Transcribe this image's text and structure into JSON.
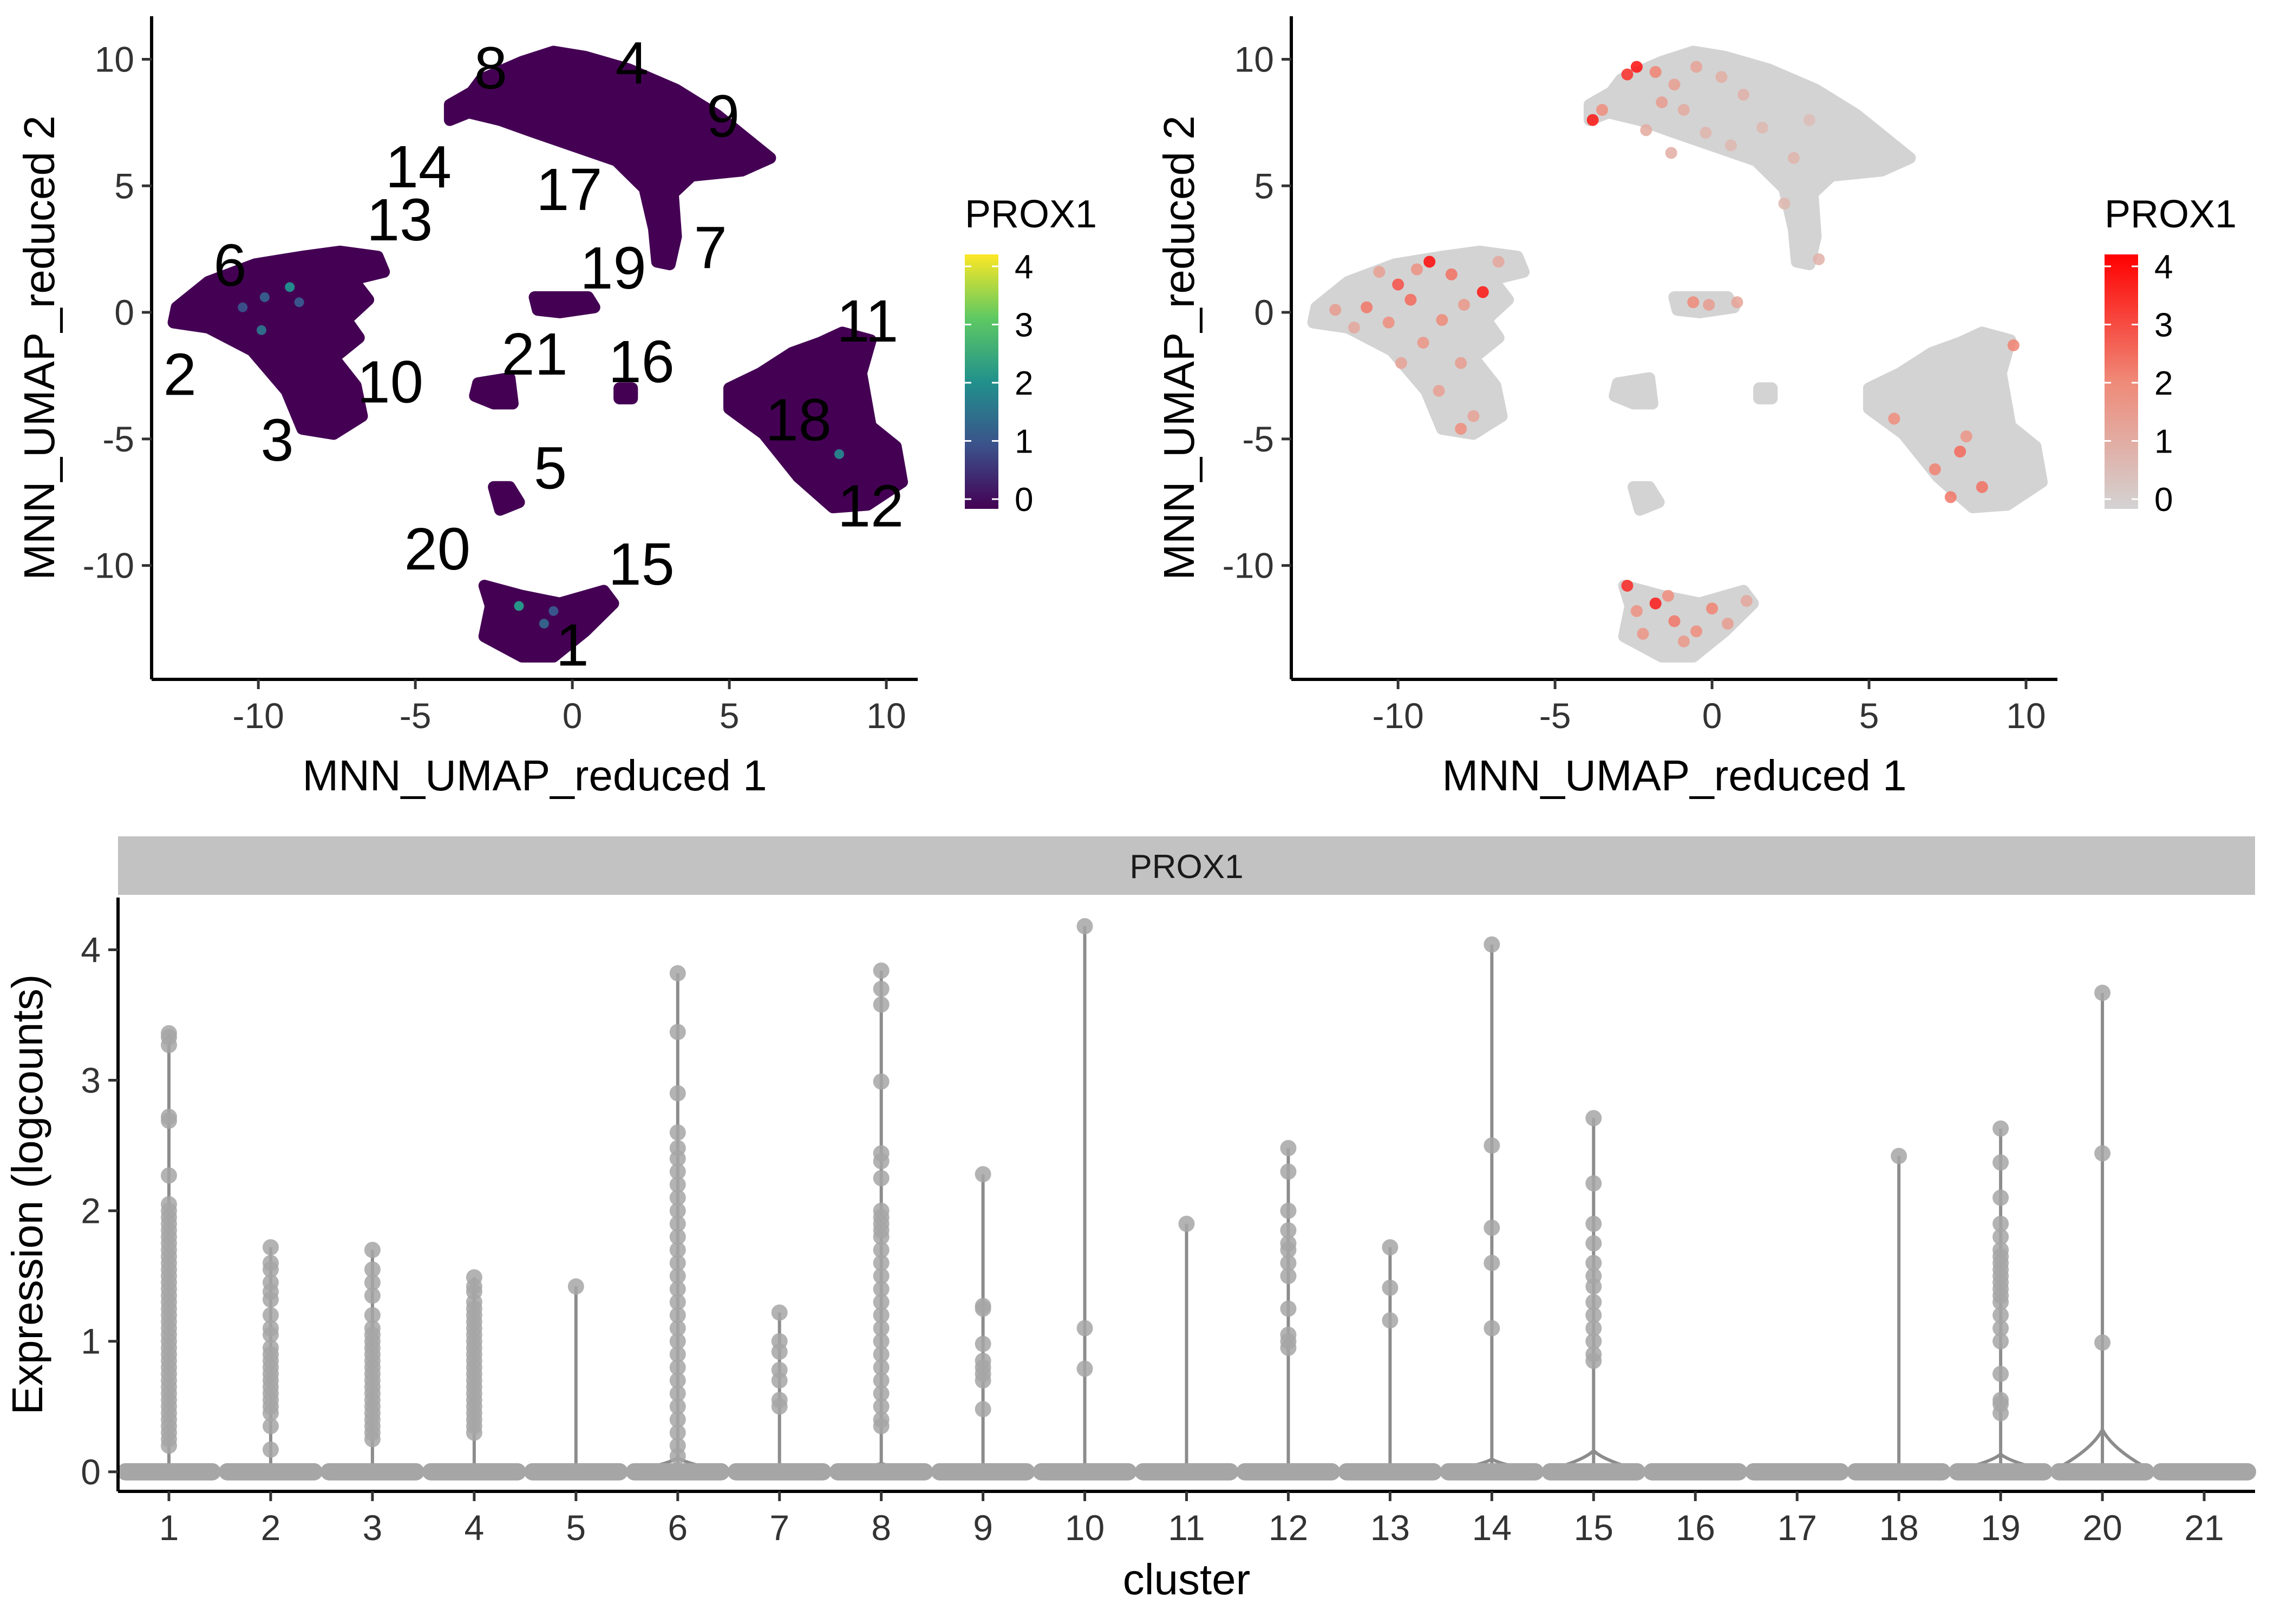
{
  "chart_data": [
    {
      "type": "scatter",
      "xlabel": "MNN_UMAP_reduced 1",
      "ylabel": "MNN_UMAP_reduced 2",
      "xlim": [
        -13.4,
        11.0
      ],
      "ylim": [
        -14.5,
        11.7
      ],
      "xticks": [
        -10,
        -5,
        0,
        5,
        10
      ],
      "yticks": [
        -10,
        -5,
        0,
        5,
        10
      ],
      "xtick_labels": [
        "-10",
        "-5",
        "0",
        "5",
        "10"
      ],
      "ytick_labels": [
        "-10",
        "-5",
        "0",
        "5",
        "10"
      ],
      "grid": false,
      "point_color": "#440154",
      "legend": {
        "title": "PROX1",
        "position": "right",
        "colormap": "viridis",
        "colors": [
          "#440154",
          "#3b528b",
          "#21918c",
          "#5ec962",
          "#fde725"
        ],
        "range": [
          0,
          4
        ],
        "tick_values": [
          0,
          1,
          2,
          3,
          4
        ],
        "tick_labels": [
          "0",
          "1",
          "2",
          "3",
          "4"
        ]
      },
      "cluster_labels": [
        {
          "text": "8",
          "x": -2.6,
          "y": 9.7
        },
        {
          "text": "4",
          "x": 1.9,
          "y": 9.9
        },
        {
          "text": "9",
          "x": 4.8,
          "y": 7.8
        },
        {
          "text": "14",
          "x": -4.9,
          "y": 5.8
        },
        {
          "text": "17",
          "x": -0.1,
          "y": 4.9
        },
        {
          "text": "13",
          "x": -5.5,
          "y": 3.7
        },
        {
          "text": "7",
          "x": 4.4,
          "y": 2.6
        },
        {
          "text": "6",
          "x": -10.9,
          "y": 1.9
        },
        {
          "text": "19",
          "x": 1.3,
          "y": 1.8
        },
        {
          "text": "11",
          "x": 9.4,
          "y": -0.3
        },
        {
          "text": "21",
          "x": -1.2,
          "y": -1.6
        },
        {
          "text": "16",
          "x": 2.2,
          "y": -1.9
        },
        {
          "text": "2",
          "x": -12.5,
          "y": -2.4
        },
        {
          "text": "10",
          "x": -5.8,
          "y": -2.7
        },
        {
          "text": "18",
          "x": 7.2,
          "y": -4.2
        },
        {
          "text": "3",
          "x": -9.4,
          "y": -5.0
        },
        {
          "text": "5",
          "x": -0.7,
          "y": -6.1
        },
        {
          "text": "12",
          "x": 9.5,
          "y": -7.6
        },
        {
          "text": "20",
          "x": -4.3,
          "y": -9.3
        },
        {
          "text": "15",
          "x": 2.2,
          "y": -9.9
        },
        {
          "text": "1",
          "x": 0.0,
          "y": -13.1
        }
      ],
      "highlight_points": [
        {
          "x": -9.8,
          "y": 0.6,
          "v": 1.2
        },
        {
          "x": -10.5,
          "y": 0.2,
          "v": 1.0
        },
        {
          "x": -9.0,
          "y": 1.0,
          "v": 2.0
        },
        {
          "x": -9.9,
          "y": -0.7,
          "v": 1.5
        },
        {
          "x": -8.7,
          "y": 0.4,
          "v": 1.1
        },
        {
          "x": -1.7,
          "y": -11.6,
          "v": 2.2
        },
        {
          "x": -0.9,
          "y": -12.3,
          "v": 1.3
        },
        {
          "x": 8.5,
          "y": -5.6,
          "v": 1.8
        },
        {
          "x": -0.6,
          "y": -11.8,
          "v": 1.1
        }
      ]
    },
    {
      "type": "scatter",
      "xlabel": "MNN_UMAP_reduced 1",
      "ylabel": "MNN_UMAP_reduced 2",
      "xlim": [
        -13.4,
        11.0
      ],
      "ylim": [
        -14.5,
        11.7
      ],
      "xticks": [
        -10,
        -5,
        0,
        5,
        10
      ],
      "yticks": [
        -10,
        -5,
        0,
        5,
        10
      ],
      "xtick_labels": [
        "-10",
        "-5",
        "0",
        "5",
        "10"
      ],
      "ytick_labels": [
        "-10",
        "-5",
        "0",
        "5",
        "10"
      ],
      "grid": false,
      "point_color": "#d3d3d3",
      "legend": {
        "title": "PROX1",
        "position": "right",
        "colors": [
          "#d3d3d3",
          "#ef8a78",
          "#ff0000"
        ],
        "range": [
          0,
          4
        ],
        "tick_values": [
          0,
          1,
          2,
          3,
          4
        ],
        "tick_labels": [
          "0",
          "1",
          "2",
          "3",
          "4"
        ]
      },
      "highlight_points": [
        {
          "x": -2.4,
          "y": 9.7,
          "v": 4.0
        },
        {
          "x": -2.7,
          "y": 9.4,
          "v": 3.5
        },
        {
          "x": -3.8,
          "y": 7.6,
          "v": 3.9
        },
        {
          "x": -3.5,
          "y": 8.0,
          "v": 2.0
        },
        {
          "x": -1.8,
          "y": 9.5,
          "v": 2.2
        },
        {
          "x": -1.2,
          "y": 9.0,
          "v": 1.5
        },
        {
          "x": -0.5,
          "y": 9.7,
          "v": 1.4
        },
        {
          "x": -1.6,
          "y": 8.3,
          "v": 1.6
        },
        {
          "x": -0.9,
          "y": 8.0,
          "v": 1.2
        },
        {
          "x": 0.3,
          "y": 9.3,
          "v": 1.1
        },
        {
          "x": 1.0,
          "y": 8.6,
          "v": 1.0
        },
        {
          "x": -2.1,
          "y": 7.2,
          "v": 1.2
        },
        {
          "x": -0.2,
          "y": 7.1,
          "v": 0.9
        },
        {
          "x": 1.6,
          "y": 7.3,
          "v": 0.8
        },
        {
          "x": 2.6,
          "y": 6.1,
          "v": 0.9
        },
        {
          "x": 3.1,
          "y": 7.6,
          "v": 0.7
        },
        {
          "x": 2.3,
          "y": 4.3,
          "v": 0.8
        },
        {
          "x": 3.4,
          "y": 2.1,
          "v": 1.0
        },
        {
          "x": 0.6,
          "y": 6.6,
          "v": 0.8
        },
        {
          "x": -1.3,
          "y": 6.3,
          "v": 1.1
        },
        {
          "x": -9.0,
          "y": 2.0,
          "v": 4.1
        },
        {
          "x": -7.3,
          "y": 0.8,
          "v": 3.9
        },
        {
          "x": -10.0,
          "y": 1.1,
          "v": 3.0
        },
        {
          "x": -8.3,
          "y": 1.5,
          "v": 2.5
        },
        {
          "x": -11.0,
          "y": 0.2,
          "v": 2.4
        },
        {
          "x": -9.6,
          "y": 0.5,
          "v": 2.6
        },
        {
          "x": -8.6,
          "y": -0.3,
          "v": 2.1
        },
        {
          "x": -10.3,
          "y": -0.4,
          "v": 2.0
        },
        {
          "x": -9.2,
          "y": -1.2,
          "v": 1.8
        },
        {
          "x": -8.0,
          "y": -2.0,
          "v": 1.6
        },
        {
          "x": -8.7,
          "y": -3.1,
          "v": 1.5
        },
        {
          "x": -7.6,
          "y": -4.1,
          "v": 1.4
        },
        {
          "x": -8.0,
          "y": -4.6,
          "v": 2.0
        },
        {
          "x": -6.8,
          "y": 2.0,
          "v": 1.3
        },
        {
          "x": -12.0,
          "y": 0.1,
          "v": 1.6
        },
        {
          "x": -11.4,
          "y": -0.6,
          "v": 1.3
        },
        {
          "x": -10.6,
          "y": 1.6,
          "v": 1.5
        },
        {
          "x": -9.4,
          "y": 1.7,
          "v": 1.9
        },
        {
          "x": -7.9,
          "y": 0.3,
          "v": 1.7
        },
        {
          "x": -9.9,
          "y": -2.0,
          "v": 1.4
        },
        {
          "x": -0.6,
          "y": 0.4,
          "v": 2.1
        },
        {
          "x": -0.1,
          "y": 0.3,
          "v": 1.6
        },
        {
          "x": 0.8,
          "y": 0.4,
          "v": 1.4
        },
        {
          "x": -2.7,
          "y": -10.8,
          "v": 3.6
        },
        {
          "x": -1.8,
          "y": -11.5,
          "v": 3.8
        },
        {
          "x": -1.2,
          "y": -12.2,
          "v": 2.4
        },
        {
          "x": -0.5,
          "y": -12.6,
          "v": 2.0
        },
        {
          "x": 0.0,
          "y": -11.7,
          "v": 2.2
        },
        {
          "x": -2.2,
          "y": -12.7,
          "v": 1.8
        },
        {
          "x": -0.9,
          "y": -13.0,
          "v": 1.7
        },
        {
          "x": 0.5,
          "y": -12.3,
          "v": 1.6
        },
        {
          "x": -1.4,
          "y": -11.2,
          "v": 2.0
        },
        {
          "x": -2.4,
          "y": -11.8,
          "v": 1.9
        },
        {
          "x": 1.1,
          "y": -11.4,
          "v": 1.3
        },
        {
          "x": 9.6,
          "y": -1.3,
          "v": 2.2
        },
        {
          "x": 7.9,
          "y": -5.5,
          "v": 2.6
        },
        {
          "x": 7.1,
          "y": -6.2,
          "v": 2.2
        },
        {
          "x": 8.6,
          "y": -6.9,
          "v": 2.5
        },
        {
          "x": 7.6,
          "y": -7.3,
          "v": 2.4
        },
        {
          "x": 5.8,
          "y": -4.2,
          "v": 2.0
        },
        {
          "x": 8.1,
          "y": -4.9,
          "v": 1.8
        }
      ]
    },
    {
      "type": "violin",
      "strip_label": "PROX1",
      "xlabel": "cluster",
      "ylabel": "Expression (logcounts)",
      "categories": [
        "1",
        "2",
        "3",
        "4",
        "5",
        "6",
        "7",
        "8",
        "9",
        "10",
        "11",
        "12",
        "13",
        "14",
        "15",
        "16",
        "17",
        "18",
        "19",
        "20",
        "21"
      ],
      "ylim": [
        -0.15,
        4.4
      ],
      "yticks": [
        0,
        1,
        2,
        3,
        4
      ],
      "ytick_labels": [
        "0",
        "1",
        "2",
        "3",
        "4"
      ],
      "grid": false,
      "color": "#a6a6a6",
      "max_values": [
        3.36,
        1.72,
        1.7,
        1.49,
        1.42,
        3.82,
        1.22,
        3.84,
        2.28,
        4.18,
        1.9,
        2.48,
        1.72,
        4.04,
        2.71,
        0,
        0,
        2.42,
        2.63,
        3.67,
        0
      ],
      "nonzero_values": [
        [
          3.36,
          3.33,
          3.27,
          2.72,
          2.69,
          2.27,
          2.05,
          2.0,
          1.95,
          1.9,
          1.85,
          1.8,
          1.75,
          1.7,
          1.65,
          1.6,
          1.55,
          1.5,
          1.45,
          1.4,
          1.35,
          1.3,
          1.25,
          1.2,
          1.15,
          1.1,
          1.05,
          1.0,
          0.95,
          0.9,
          0.85,
          0.8,
          0.75,
          0.7,
          0.65,
          0.6,
          0.55,
          0.5,
          0.45,
          0.4,
          0.35,
          0.3,
          0.25,
          0.2
        ],
        [
          1.72,
          1.6,
          1.55,
          1.45,
          1.38,
          1.32,
          1.2,
          1.1,
          1.05,
          0.95,
          0.9,
          0.85,
          0.8,
          0.75,
          0.7,
          0.65,
          0.6,
          0.55,
          0.5,
          0.45,
          0.35,
          0.17
        ],
        [
          1.7,
          1.55,
          1.45,
          1.35,
          1.2,
          1.1,
          1.05,
          1.0,
          0.95,
          0.9,
          0.85,
          0.8,
          0.75,
          0.7,
          0.65,
          0.6,
          0.55,
          0.5,
          0.45,
          0.4,
          0.35,
          0.3,
          0.25
        ],
        [
          1.49,
          1.42,
          1.38,
          1.3,
          1.25,
          1.2,
          1.15,
          1.1,
          1.05,
          1.0,
          0.95,
          0.9,
          0.85,
          0.8,
          0.75,
          0.7,
          0.65,
          0.6,
          0.55,
          0.5,
          0.45,
          0.4,
          0.35,
          0.3
        ],
        [
          1.42
        ],
        [
          3.82,
          3.37,
          2.9,
          2.6,
          2.48,
          2.4,
          2.3,
          2.2,
          2.1,
          2.0,
          1.9,
          1.8,
          1.7,
          1.6,
          1.5,
          1.4,
          1.3,
          1.2,
          1.1,
          1.0,
          0.9,
          0.8,
          0.7,
          0.6,
          0.5,
          0.4,
          0.3,
          0.2,
          0.12
        ],
        [
          1.22,
          1.0,
          0.92,
          0.78,
          0.7,
          0.55,
          0.5
        ],
        [
          3.84,
          3.7,
          3.58,
          2.99,
          2.44,
          2.38,
          2.25,
          2.0,
          1.95,
          1.9,
          1.85,
          1.8,
          1.7,
          1.6,
          1.5,
          1.4,
          1.3,
          1.2,
          1.1,
          1.0,
          0.9,
          0.8,
          0.7,
          0.6,
          0.5,
          0.4,
          0.35
        ],
        [
          2.28,
          1.27,
          1.25,
          0.98,
          0.85,
          0.8,
          0.75,
          0.7,
          0.48
        ],
        [
          4.18,
          1.1,
          0.79
        ],
        [
          1.9
        ],
        [
          2.48,
          2.3,
          2.0,
          1.85,
          1.75,
          1.7,
          1.6,
          1.5,
          1.25,
          1.05,
          1.0,
          0.95
        ],
        [
          1.72,
          1.41,
          1.16
        ],
        [
          4.04,
          2.5,
          1.87,
          1.6,
          1.1
        ],
        [
          2.71,
          2.21,
          1.9,
          1.75,
          1.6,
          1.5,
          1.42,
          1.3,
          1.2,
          1.1,
          1.0,
          0.9,
          0.85
        ],
        [],
        [],
        [
          2.42
        ],
        [
          2.63,
          2.37,
          2.1,
          1.9,
          1.8,
          1.7,
          1.65,
          1.6,
          1.55,
          1.5,
          1.45,
          1.4,
          1.35,
          1.3,
          1.2,
          1.1,
          1.0,
          0.75,
          0.55,
          0.52,
          0.45
        ],
        [
          3.67,
          2.44,
          0.99
        ],
        []
      ],
      "bulge_at_zero": [
        0.06,
        0.04,
        0.04,
        0.04,
        0.02,
        0.2,
        0.02,
        0.12,
        0.03,
        0.02,
        0.02,
        0.04,
        0.02,
        0.18,
        0.3,
        0.0,
        0.0,
        0.02,
        0.25,
        0.6,
        0.0
      ]
    }
  ]
}
